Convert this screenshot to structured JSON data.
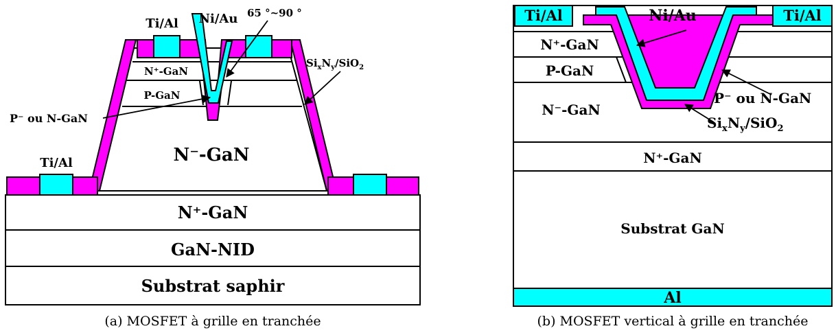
{
  "colors": {
    "metal": "#00ffff",
    "dielectric": "#ff00ff",
    "semiconductor": "#ffffff",
    "outline": "#000000"
  },
  "figure_a": {
    "caption": "(a) MOSFET à grille en tranchée",
    "layers": {
      "substrate": "Substrat saphir",
      "nid": "GaN-NID",
      "n_plus_base": "N⁺-GaN",
      "n_minus": "N⁻-GaN",
      "n_plus_top": "N⁺-GaN",
      "p_layer": "P-GaN",
      "p_minus_or_n": "P⁻ ou N-GaN"
    },
    "labels": {
      "ti_al_top": "Ti/Al",
      "ti_al_bottom": "Ti/Al",
      "ni_au": "Ni/Au",
      "angle": "65 °~90 °",
      "dielectric": {
        "main": "Si",
        "sub1": "x",
        "mid": "N",
        "sub2": "y",
        "tail": "/SiO",
        "sub3": "2"
      }
    }
  },
  "figure_b": {
    "caption": "(b) MOSFET vertical à grille en tranchée",
    "layers": {
      "n_plus_top": "N⁺-GaN",
      "p_layer": "P-GaN",
      "n_minus": "N⁻-GaN",
      "n_plus_bottom": "N⁺-GaN",
      "substrate": "Substrat GaN",
      "al": "Al"
    },
    "labels": {
      "ti_al_left": "Ti/Al",
      "ti_al_right": "Ti/Al",
      "ni_au": "Ni/Au",
      "p_minus_or_n": "P⁻ ou N-GaN",
      "dielectric": {
        "main": "Si",
        "sub1": "x",
        "mid": "N",
        "sub2": "y",
        "tail": "/SiO",
        "sub3": "2"
      }
    }
  }
}
